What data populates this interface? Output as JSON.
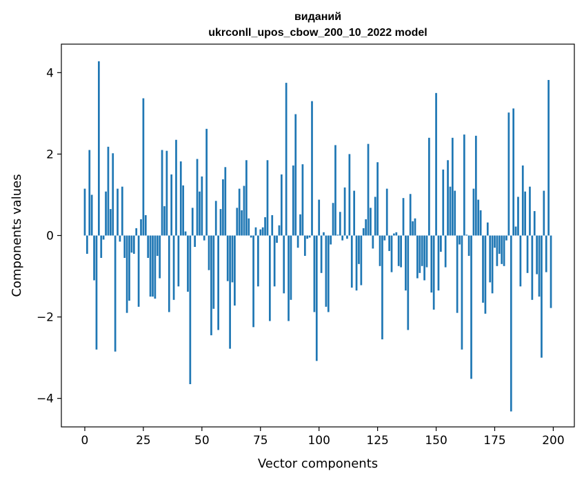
{
  "chart_data": {
    "type": "bar",
    "title_line1": "виданий",
    "title_line2": "ukrconll_upos_cbow_200_10_2022 model",
    "xlabel": "Vector components",
    "ylabel": "Components values",
    "xlim": [
      -10,
      209
    ],
    "ylim": [
      -4.7,
      4.7
    ],
    "xticks": [
      0,
      25,
      50,
      75,
      100,
      125,
      150,
      175,
      200
    ],
    "xtick_labels": [
      "0",
      "25",
      "50",
      "75",
      "100",
      "125",
      "150",
      "175",
      "200"
    ],
    "yticks": [
      -4,
      -2,
      0,
      2,
      4
    ],
    "ytick_labels": [
      "−4",
      "−2",
      "0",
      "2",
      "4"
    ],
    "bar_color": "#1f77b4",
    "grid": false,
    "x": [
      0,
      1,
      2,
      3,
      4,
      5,
      6,
      7,
      8,
      9,
      10,
      11,
      12,
      13,
      14,
      15,
      16,
      17,
      18,
      19,
      20,
      21,
      22,
      23,
      24,
      25,
      26,
      27,
      28,
      29,
      30,
      31,
      32,
      33,
      34,
      35,
      36,
      37,
      38,
      39,
      40,
      41,
      42,
      43,
      44,
      45,
      46,
      47,
      48,
      49,
      50,
      51,
      52,
      53,
      54,
      55,
      56,
      57,
      58,
      59,
      60,
      61,
      62,
      63,
      64,
      65,
      66,
      67,
      68,
      69,
      70,
      71,
      72,
      73,
      74,
      75,
      76,
      77,
      78,
      79,
      80,
      81,
      82,
      83,
      84,
      85,
      86,
      87,
      88,
      89,
      90,
      91,
      92,
      93,
      94,
      95,
      96,
      97,
      98,
      99,
      100,
      101,
      102,
      103,
      104,
      105,
      106,
      107,
      108,
      109,
      110,
      111,
      112,
      113,
      114,
      115,
      116,
      117,
      118,
      119,
      120,
      121,
      122,
      123,
      124,
      125,
      126,
      127,
      128,
      129,
      130,
      131,
      132,
      133,
      134,
      135,
      136,
      137,
      138,
      139,
      140,
      141,
      142,
      143,
      144,
      145,
      146,
      147,
      148,
      149,
      150,
      151,
      152,
      153,
      154,
      155,
      156,
      157,
      158,
      159,
      160,
      161,
      162,
      163,
      164,
      165,
      166,
      167,
      168,
      169,
      170,
      171,
      172,
      173,
      174,
      175,
      176,
      177,
      178,
      179,
      180,
      181,
      182,
      183,
      184,
      185,
      186,
      187,
      188,
      189,
      190,
      191,
      192,
      193,
      194,
      195,
      196,
      197,
      198,
      199
    ],
    "values": [
      1.15,
      -0.45,
      2.1,
      1.0,
      -1.1,
      -2.8,
      4.28,
      -0.55,
      -0.1,
      1.08,
      2.18,
      0.65,
      2.02,
      -2.85,
      1.15,
      -0.15,
      1.2,
      -0.55,
      -1.9,
      -1.6,
      -0.42,
      -0.45,
      0.18,
      -1.75,
      0.4,
      3.37,
      0.5,
      -0.55,
      -1.5,
      -1.5,
      -1.55,
      -0.5,
      -1.05,
      2.1,
      0.72,
      2.08,
      -1.88,
      1.5,
      -1.58,
      2.35,
      -1.25,
      1.82,
      1.23,
      0.1,
      -1.38,
      -3.65,
      0.68,
      -0.28,
      1.88,
      1.08,
      1.45,
      -0.12,
      2.62,
      -0.85,
      -2.45,
      -1.8,
      0.85,
      -2.32,
      0.65,
      1.38,
      1.68,
      -1.12,
      -2.78,
      -1.15,
      -1.72,
      0.68,
      1.15,
      0.62,
      1.22,
      1.85,
      0.42,
      -0.05,
      -2.25,
      0.2,
      -1.25,
      0.15,
      0.2,
      0.45,
      1.85,
      -2.1,
      0.5,
      -1.25,
      -0.18,
      0.25,
      1.5,
      -1.42,
      3.75,
      -2.1,
      -1.58,
      1.72,
      2.98,
      -0.3,
      0.52,
      1.75,
      -0.5,
      -0.08,
      -0.05,
      3.3,
      -1.88,
      -3.08,
      0.88,
      -0.92,
      0.08,
      -1.75,
      -1.88,
      -0.22,
      0.8,
      2.22,
      0.02,
      0.58,
      -0.12,
      1.18,
      -0.08,
      2.0,
      -1.28,
      1.1,
      -1.35,
      -0.7,
      -1.22,
      0.18,
      0.4,
      2.25,
      0.68,
      -0.32,
      0.95,
      1.8,
      -0.75,
      -2.55,
      -0.12,
      1.15,
      -0.38,
      -0.9,
      0.05,
      0.08,
      -0.75,
      -0.78,
      0.92,
      -1.35,
      -2.32,
      1.02,
      0.35,
      0.42,
      -1.05,
      -0.92,
      -0.75,
      -1.1,
      -0.78,
      2.4,
      -1.4,
      -1.82,
      3.5,
      -1.35,
      -0.4,
      1.62,
      -0.78,
      1.85,
      1.2,
      2.4,
      1.1,
      -1.9,
      -0.22,
      -2.8,
      2.48,
      0.02,
      -0.5,
      -3.52,
      1.15,
      2.45,
      0.88,
      0.62,
      -1.65,
      -1.92,
      0.32,
      -1.15,
      -1.42,
      -0.3,
      -0.75,
      -0.45,
      -0.7,
      -0.75,
      -0.12,
      3.02,
      -4.32,
      3.12,
      0.22,
      0.95,
      -1.25,
      1.72,
      1.08,
      -0.92,
      1.2,
      -1.58,
      0.6,
      -0.95,
      -1.5,
      -3.0,
      1.1,
      -0.9,
      3.82,
      -1.78
    ]
  }
}
